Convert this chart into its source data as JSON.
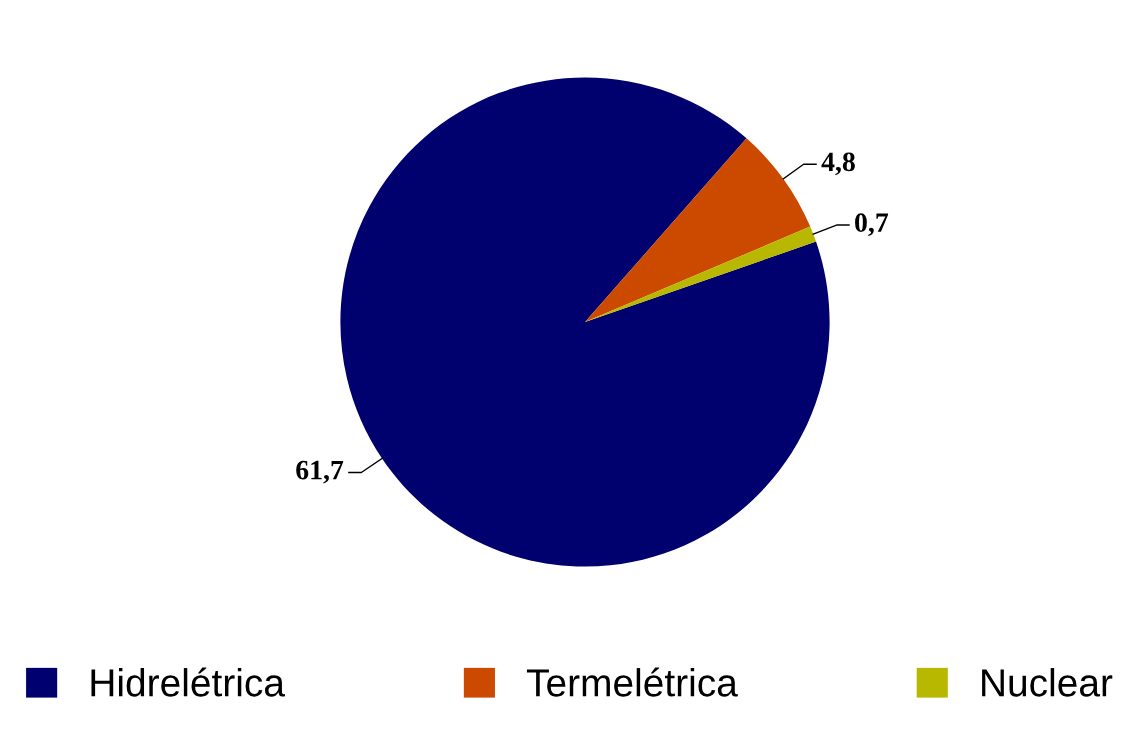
{
  "chart_data": {
    "type": "pie",
    "categories": [
      "Hidrelétrica",
      "Termelétrica",
      "Nuclear"
    ],
    "values": [
      61.7,
      4.8,
      0.7
    ],
    "colors": [
      "#00006e",
      "#cc4a00",
      "#b8b800"
    ],
    "value_labels": [
      "61,7",
      "4,8",
      "0,7"
    ],
    "legend": "bottom"
  }
}
